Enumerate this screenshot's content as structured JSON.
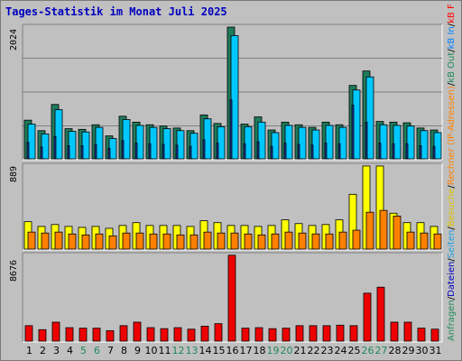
{
  "title": "Tages-Statistik im Monat Juli 2025",
  "panels": {
    "top_max_label": "2024",
    "mid_max_label": "889",
    "bot_max_label": "8676"
  },
  "legend": [
    {
      "text": "Anfragen",
      "color": "#1f8a5a"
    },
    {
      "text": "/",
      "color": "#000000"
    },
    {
      "text": "Dateien",
      "color": "#0000c0"
    },
    {
      "text": "/",
      "color": "#000000"
    },
    {
      "text": "Seiten",
      "color": "#20a0e0"
    },
    {
      "text": "/",
      "color": "#000000"
    },
    {
      "text": "Besuche",
      "color": "#e0c000"
    },
    {
      "text": "/",
      "color": "#000000"
    },
    {
      "text": "Rechner (IP-Adressen)",
      "color": "#ff8000"
    },
    {
      "text": "/",
      "color": "#000000"
    },
    {
      "text": "kB Out",
      "color": "#1f8a5a"
    },
    {
      "text": "/",
      "color": "#000000"
    },
    {
      "text": "kB In",
      "color": "#0080ff"
    },
    {
      "text": "/",
      "color": "#000000"
    },
    {
      "text": "kB F",
      "color": "#ff0000"
    }
  ],
  "colors": {
    "hits": "#1f7a5a",
    "files": "#00c8ff",
    "pages": "#1a3aa0",
    "visits": "#ffff00",
    "sites": "#ff8000",
    "kbytes": "#ee0000"
  },
  "chart_data": {
    "type": "bar",
    "categories": [
      "1",
      "2",
      "3",
      "4",
      "5",
      "6",
      "7",
      "8",
      "9",
      "10",
      "11",
      "12",
      "13",
      "14",
      "15",
      "16",
      "17",
      "18",
      "19",
      "20",
      "21",
      "22",
      "23",
      "24",
      "25",
      "26",
      "27",
      "28",
      "29",
      "30",
      "31"
    ],
    "weekend_days": [
      "5",
      "6",
      "12",
      "13",
      "19",
      "20",
      "26",
      "27"
    ],
    "top_ylim": [
      0,
      2024
    ],
    "series_top": [
      {
        "name": "Anfragen",
        "values": [
          590,
          430,
          830,
          460,
          450,
          520,
          350,
          650,
          560,
          520,
          500,
          470,
          430,
          670,
          540,
          2010,
          530,
          640,
          440,
          560,
          520,
          480,
          560,
          520,
          1120,
          1340,
          570,
          560,
          550,
          470,
          440
        ]
      },
      {
        "name": "Dateien",
        "values": [
          530,
          380,
          750,
          420,
          410,
          480,
          310,
          600,
          510,
          480,
          460,
          430,
          390,
          610,
          490,
          1880,
          490,
          560,
          400,
          510,
          480,
          440,
          510,
          480,
          1050,
          1250,
          520,
          510,
          500,
          430,
          400
        ]
      },
      {
        "name": "Seiten",
        "values": [
          250,
          180,
          340,
          200,
          200,
          220,
          160,
          280,
          240,
          230,
          220,
          210,
          190,
          290,
          240,
          900,
          230,
          260,
          190,
          240,
          220,
          210,
          240,
          230,
          820,
          560,
          240,
          230,
          230,
          200,
          190
        ]
      }
    ],
    "mid_ylim": [
      0,
      889
    ],
    "series_mid": [
      {
        "name": "Besuche",
        "values": [
          290,
          240,
          260,
          240,
          230,
          240,
          220,
          250,
          280,
          250,
          250,
          250,
          240,
          300,
          280,
          250,
          250,
          240,
          250,
          310,
          270,
          250,
          260,
          310,
          580,
          880,
          880,
          380,
          280,
          280,
          240
        ]
      },
      {
        "name": "Rechner (IP-Adressen)",
        "values": [
          180,
          170,
          180,
          160,
          150,
          160,
          140,
          170,
          170,
          160,
          160,
          150,
          150,
          180,
          170,
          170,
          160,
          150,
          160,
          180,
          170,
          160,
          160,
          180,
          200,
          390,
          410,
          350,
          180,
          170,
          160
        ]
      }
    ],
    "bot_ylim": [
      0,
      8676
    ],
    "series_bot": [
      {
        "name": "kB F",
        "values": [
          1550,
          1150,
          1900,
          1350,
          1300,
          1300,
          1050,
          1550,
          1900,
          1350,
          1250,
          1350,
          1200,
          1500,
          1750,
          8600,
          1300,
          1350,
          1250,
          1300,
          1550,
          1550,
          1550,
          1600,
          1550,
          4800,
          5400,
          1900,
          1900,
          1300,
          1200
        ]
      }
    ]
  }
}
